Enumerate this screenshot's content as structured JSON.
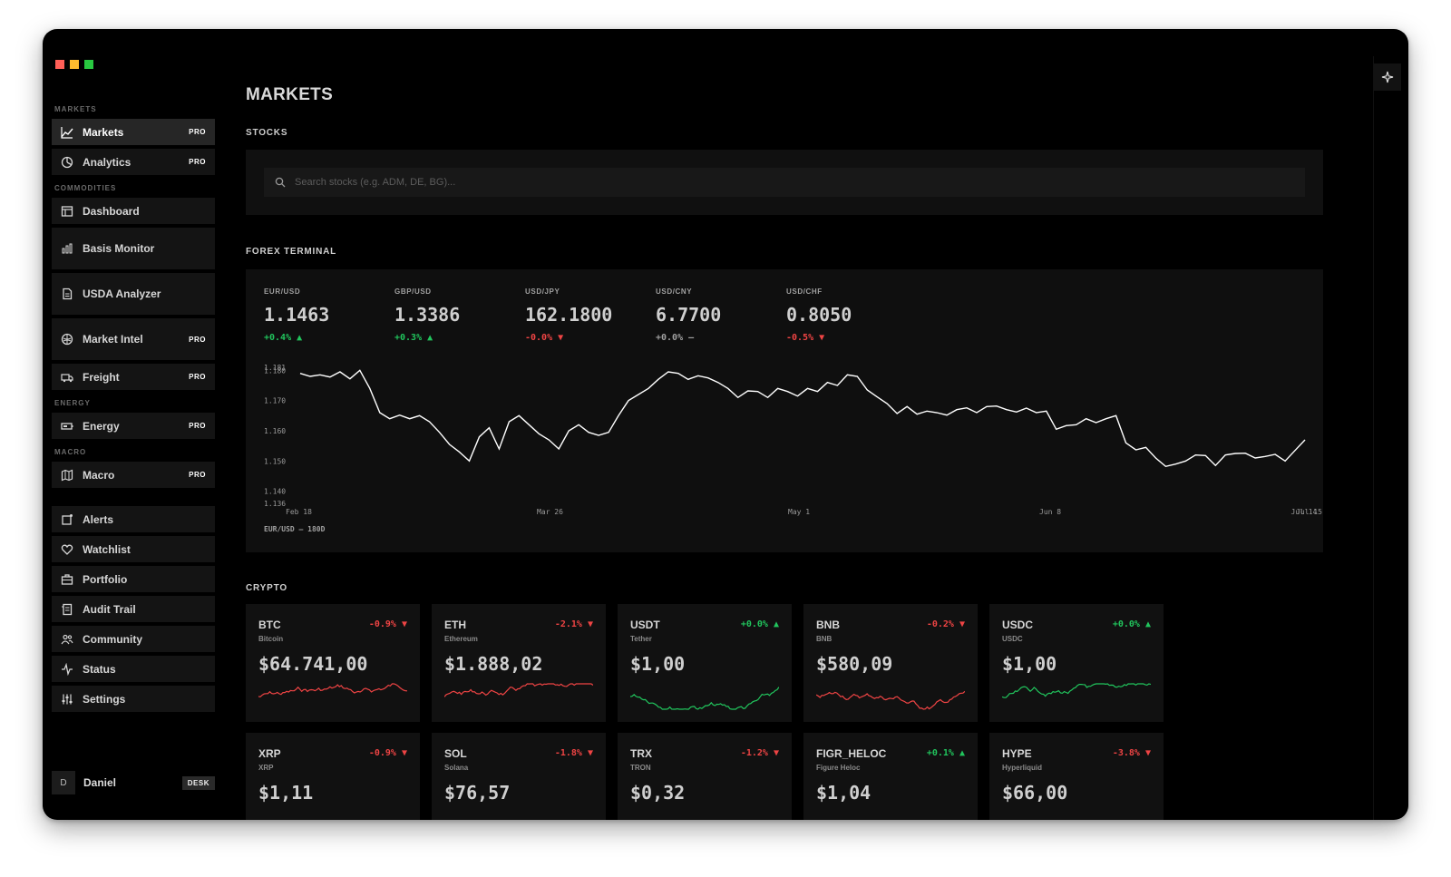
{
  "window": {
    "controls": [
      "close",
      "minimize",
      "maximize"
    ]
  },
  "sidebar": {
    "sections": [
      {
        "label": "MARKETS",
        "items": [
          {
            "label": "Markets",
            "icon": "line-chart-icon",
            "badge": "PRO",
            "active": true
          },
          {
            "label": "Analytics",
            "icon": "pie-chart-icon",
            "badge": "PRO"
          }
        ]
      },
      {
        "label": "COMMODITIES",
        "items": [
          {
            "label": "Dashboard",
            "icon": "layout-icon",
            "badge": ""
          },
          {
            "label": "Basis Monitor",
            "icon": "bar-chart-icon",
            "badge": "",
            "tall": true
          },
          {
            "label": "USDA Analyzer",
            "icon": "document-icon",
            "badge": "",
            "tall": true
          },
          {
            "label": "Market Intel",
            "icon": "brain-icon",
            "badge": "PRO",
            "tall": true
          },
          {
            "label": "Freight",
            "icon": "truck-icon",
            "badge": "PRO"
          }
        ]
      },
      {
        "label": "ENERGY",
        "items": [
          {
            "label": "Energy",
            "icon": "battery-icon",
            "badge": "PRO"
          }
        ]
      },
      {
        "label": "MACRO",
        "items": [
          {
            "label": "Macro",
            "icon": "map-icon",
            "badge": "PRO"
          }
        ]
      },
      {
        "label": "",
        "items": [
          {
            "label": "Alerts",
            "icon": "bell-icon",
            "badge": ""
          },
          {
            "label": "Watchlist",
            "icon": "heart-icon",
            "badge": ""
          },
          {
            "label": "Portfolio",
            "icon": "briefcase-icon",
            "badge": ""
          },
          {
            "label": "Audit Trail",
            "icon": "receipt-icon",
            "badge": ""
          },
          {
            "label": "Community",
            "icon": "users-icon",
            "badge": ""
          },
          {
            "label": "Status",
            "icon": "activity-icon",
            "badge": ""
          },
          {
            "label": "Settings",
            "icon": "sliders-icon",
            "badge": ""
          }
        ]
      }
    ],
    "user": {
      "initial": "D",
      "name": "Daniel",
      "badge": "DESK"
    }
  },
  "main": {
    "title": "MARKETS",
    "stocks": {
      "title": "STOCKS",
      "search_placeholder": "Search stocks (e.g. ADM, DE, BG)..."
    },
    "forex": {
      "title": "FOREX TERMINAL",
      "pairs": [
        {
          "pair": "EUR/USD",
          "rate": "1.1463",
          "change": "+0.4% ▲",
          "dir": "up"
        },
        {
          "pair": "GBP/USD",
          "rate": "1.3386",
          "change": "+0.3% ▲",
          "dir": "up"
        },
        {
          "pair": "USD/JPY",
          "rate": "162.1800",
          "change": "-0.0% ▼",
          "dir": "down"
        },
        {
          "pair": "USD/CNY",
          "rate": "6.7700",
          "change": "+0.0% —",
          "dir": "flat"
        },
        {
          "pair": "USD/CHF",
          "rate": "0.8050",
          "change": "-0.5% ▼",
          "dir": "down"
        }
      ],
      "chart_caption": "EUR/USD — 180D"
    },
    "crypto": {
      "title": "CRYPTO",
      "cards": [
        {
          "symbol": "BTC",
          "name": "Bitcoin",
          "change": "-0.9% ▼",
          "dir": "down",
          "price": "$64.741,00"
        },
        {
          "symbol": "ETH",
          "name": "Ethereum",
          "change": "-2.1% ▼",
          "dir": "down",
          "price": "$1.888,02"
        },
        {
          "symbol": "USDT",
          "name": "Tether",
          "change": "+0.0% ▲",
          "dir": "up",
          "price": "$1,00"
        },
        {
          "symbol": "BNB",
          "name": "BNB",
          "change": "-0.2% ▼",
          "dir": "down",
          "price": "$580,09"
        },
        {
          "symbol": "USDC",
          "name": "USDC",
          "change": "+0.0% ▲",
          "dir": "up",
          "price": "$1,00"
        },
        {
          "symbol": "XRP",
          "name": "XRP",
          "change": "-0.9% ▼",
          "dir": "down",
          "price": "$1,11"
        },
        {
          "symbol": "SOL",
          "name": "Solana",
          "change": "-1.8% ▼",
          "dir": "down",
          "price": "$76,57"
        },
        {
          "symbol": "TRX",
          "name": "TRON",
          "change": "-1.2% ▼",
          "dir": "down",
          "price": "$0,32"
        },
        {
          "symbol": "FIGR_HELOC",
          "name": "Figure Heloc",
          "change": "+0.1% ▲",
          "dir": "up",
          "price": "$1,04"
        },
        {
          "symbol": "HYPE",
          "name": "Hyperliquid",
          "change": "-3.8% ▼",
          "dir": "down",
          "price": "$66,00"
        }
      ]
    }
  },
  "colors": {
    "up": "#21c55d",
    "down": "#ef4444",
    "line": "#ffffff",
    "background": "#000000"
  },
  "chart_data": {
    "type": "line",
    "series": [
      {
        "values": [
          1.179,
          1.178,
          1.1785,
          1.1778,
          1.1795,
          1.1772,
          1.18,
          1.174,
          1.166,
          1.164,
          1.1652,
          1.164,
          1.165,
          1.163,
          1.1595,
          1.1555,
          1.153,
          1.15,
          1.158,
          1.161,
          1.154,
          1.163,
          1.165,
          1.162,
          1.159,
          1.157,
          1.154,
          1.16,
          1.162,
          1.1595,
          1.1585,
          1.1595,
          1.165,
          1.17,
          1.172,
          1.174,
          1.177,
          1.1795,
          1.179,
          1.177,
          1.1782,
          1.1775,
          1.176,
          1.174,
          1.171,
          1.1732,
          1.173,
          1.171,
          1.174,
          1.173,
          1.1715,
          1.174,
          1.173,
          1.176,
          1.175,
          1.1785,
          1.178,
          1.1735,
          1.1712,
          1.169,
          1.1657,
          1.168,
          1.1655,
          1.1665,
          1.166,
          1.1652,
          1.167,
          1.1676,
          1.166,
          1.168,
          1.1682,
          1.167,
          1.1662,
          1.1675,
          1.166,
          1.1665,
          1.1605,
          1.1617,
          1.162,
          1.164,
          1.1627,
          1.164,
          1.165,
          1.156,
          1.1537,
          1.1545,
          1.151,
          1.1482,
          1.149,
          1.15,
          1.152,
          1.1518,
          1.1485,
          1.152,
          1.1525,
          1.1526,
          1.151,
          1.1515,
          1.1522,
          1.15,
          1.1535,
          1.157
        ]
      }
    ],
    "x_tick_labels": [
      "Feb 18",
      "Mar 26",
      "May 1",
      "Jun 8",
      "Jul 14",
      "Jul 15"
    ],
    "y_tick_labels": [
      "1.181",
      "1.180",
      "1.170",
      "1.160",
      "1.150",
      "1.140",
      "1.136"
    ],
    "ylim": [
      1.136,
      1.181
    ],
    "grid": false
  }
}
